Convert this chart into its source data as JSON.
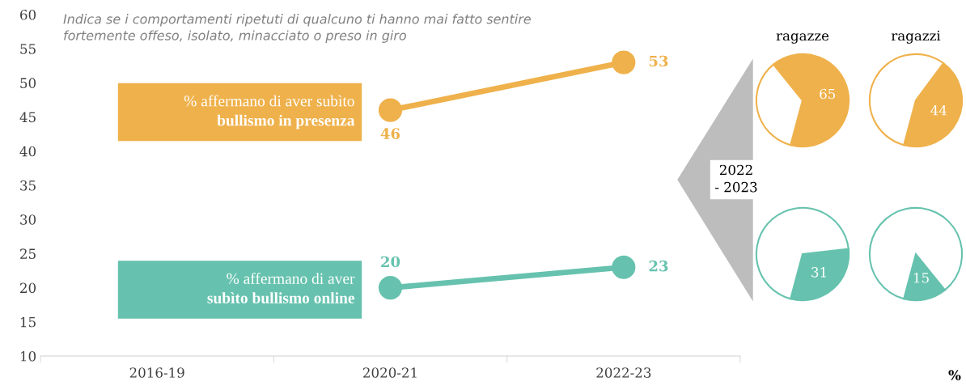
{
  "chart_data": [
    {
      "type": "line",
      "title": "Indica se i comportamenti ripetuti di qualcuno ti hanno mai fatto sentire\nfortemente offeso, isolato, minacciato o preso in giro",
      "categories": [
        "2016-19",
        "2020-21",
        "2022-23"
      ],
      "ylim": [
        10,
        60
      ],
      "yticks": [
        10,
        15,
        20,
        25,
        30,
        35,
        40,
        45,
        50,
        55,
        60
      ],
      "marker": "circle",
      "data_labels": true,
      "grid": false,
      "legend": false,
      "series": [
        {
          "name": "% affermano di aver subìto\nbullismo in presenza",
          "color": "#efb14b",
          "values": [
            null,
            46,
            53
          ]
        },
        {
          "name": "% affermano di aver\nsubìto bullismo online",
          "color": "#66c2ae",
          "values": [
            null,
            20,
            23
          ]
        }
      ],
      "annotations": [
        "2022\n- 2023",
        "%"
      ]
    },
    {
      "type": "pie",
      "title": "ragazze",
      "categories": [
        null,
        null
      ],
      "values": [
        65,
        35
      ],
      "colors": [
        "#efb14b",
        "#ffffff"
      ],
      "value_labels": [
        "65",
        null
      ]
    },
    {
      "type": "pie",
      "title": "ragazzi",
      "categories": [
        null,
        null
      ],
      "values": [
        44,
        56
      ],
      "colors": [
        "#efb14b",
        "#ffffff"
      ],
      "value_labels": [
        "44",
        null
      ]
    },
    {
      "type": "pie",
      "categories": [
        null,
        null
      ],
      "values": [
        31,
        69
      ],
      "colors": [
        "#66c2ae",
        "#ffffff"
      ],
      "value_labels": [
        "31",
        null
      ]
    },
    {
      "type": "pie",
      "categories": [
        null,
        null
      ],
      "values": [
        15,
        85
      ],
      "colors": [
        "#66c2ae",
        "#ffffff"
      ],
      "value_labels": [
        "15",
        null
      ]
    }
  ]
}
